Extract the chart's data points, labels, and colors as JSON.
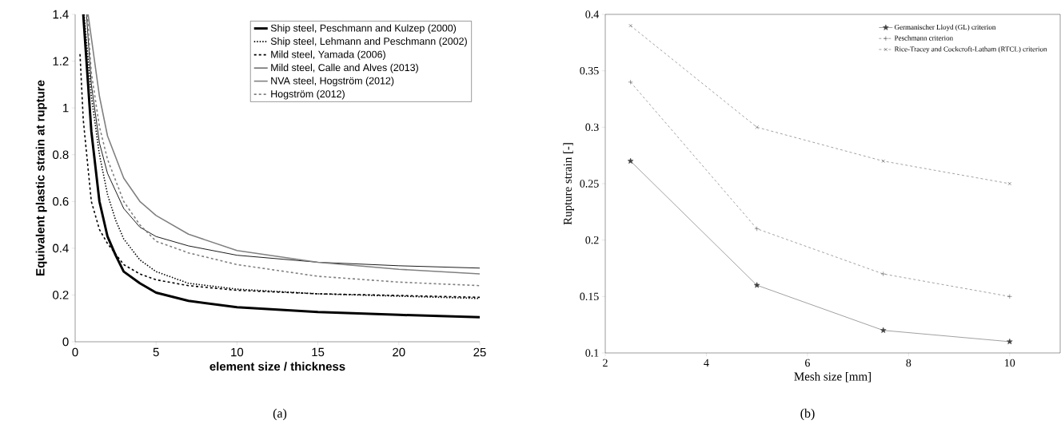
{
  "chart_data": [
    {
      "type": "line",
      "xlabel": "element size / thickness",
      "ylabel": "Equivalent plastic strain at rupture",
      "xlim": [
        0,
        25
      ],
      "ylim": [
        0,
        1.4
      ],
      "xticks": [
        0,
        5,
        10,
        15,
        20,
        25
      ],
      "yticks": [
        0,
        0.2,
        0.4,
        0.6,
        0.8,
        1,
        1.2,
        1.4
      ],
      "legend": "top right",
      "marker": "none",
      "annotations": [
        "(a)"
      ],
      "series": [
        {
          "name": "Ship steel, Peschmann and Kulzep (2000)",
          "color": "#000000",
          "line_style": "solid",
          "x": [
            0.5,
            1,
            1.5,
            2,
            2.5,
            3,
            4,
            5,
            7,
            10,
            15,
            20,
            25
          ],
          "values": [
            1.4,
            0.9,
            0.6,
            0.45,
            0.37,
            0.3,
            0.25,
            0.21,
            0.175,
            0.148,
            0.127,
            0.115,
            0.105
          ]
        },
        {
          "name": "Ship steel, Lehmann and Peschmann (2002)",
          "color": "#000000",
          "line_style": "dotted",
          "x": [
            0.55,
            1,
            1.5,
            2,
            2.5,
            3,
            4,
            5,
            7,
            10,
            15,
            20,
            25
          ],
          "values": [
            1.4,
            1.05,
            0.8,
            0.63,
            0.52,
            0.44,
            0.35,
            0.3,
            0.25,
            0.225,
            0.205,
            0.195,
            0.185
          ]
        },
        {
          "name": "Mild steel, Yamada (2006)",
          "color": "#000000",
          "line_style": "dashed",
          "x": [
            0.3,
            0.5,
            1,
            1.5,
            2,
            3,
            4,
            5,
            7,
            10,
            15,
            20,
            25
          ],
          "values": [
            1.23,
            0.95,
            0.6,
            0.48,
            0.42,
            0.33,
            0.29,
            0.265,
            0.24,
            0.22,
            0.205,
            0.198,
            0.19
          ]
        },
        {
          "name": "Mild steel, Calle and Alves (2013)",
          "color": "#000000",
          "line_style": "solid",
          "x": [
            0.7,
            1,
            1.5,
            2,
            3,
            4,
            5,
            7,
            10,
            15,
            20,
            25
          ],
          "values": [
            1.4,
            1.1,
            0.85,
            0.72,
            0.57,
            0.49,
            0.45,
            0.41,
            0.37,
            0.34,
            0.325,
            0.315
          ]
        },
        {
          "name": "NVA steel, Hogström (2012)",
          "color": "#808080",
          "line_style": "solid",
          "x": [
            0.8,
            1,
            1.5,
            2,
            3,
            4,
            5,
            7,
            10,
            15,
            20,
            25
          ],
          "values": [
            1.4,
            1.3,
            1.05,
            0.88,
            0.7,
            0.6,
            0.54,
            0.46,
            0.39,
            0.34,
            0.31,
            0.29
          ]
        },
        {
          "name": "Hogström (2012)",
          "color": "#808080",
          "line_style": "dashed",
          "x": [
            0.75,
            1,
            1.5,
            2,
            3,
            4,
            5,
            7,
            10,
            15,
            20,
            25
          ],
          "values": [
            1.4,
            1.15,
            0.92,
            0.78,
            0.6,
            0.5,
            0.43,
            0.38,
            0.33,
            0.28,
            0.255,
            0.24
          ]
        }
      ]
    },
    {
      "type": "line",
      "xlabel": "Mesh size [mm]",
      "ylabel": "Rupture strain [-]",
      "xlim": [
        2,
        11
      ],
      "ylim": [
        0.1,
        0.4
      ],
      "xticks": [
        2,
        4,
        6,
        8,
        10
      ],
      "yticks": [
        0.1,
        0.15,
        0.2,
        0.25,
        0.3,
        0.35,
        0.4
      ],
      "legend": "top right",
      "annotations": [
        "(b)"
      ],
      "series": [
        {
          "name": "Germanischer Lloyd (GL) criterion",
          "color": "#404040",
          "line_style": "solid",
          "marker": "star",
          "x": [
            2.5,
            5,
            7.5,
            10
          ],
          "values": [
            0.27,
            0.16,
            0.12,
            0.11
          ]
        },
        {
          "name": "Peschmann criterion",
          "color": "#404040",
          "line_style": "dashed",
          "marker": "cross",
          "x": [
            2.5,
            5,
            7.5,
            10
          ],
          "values": [
            0.34,
            0.21,
            0.17,
            0.15
          ]
        },
        {
          "name": "Rice-Tracey and Cockcroft-Latham (RTCL) criterion",
          "color": "#404040",
          "line_style": "dashed",
          "marker": "cross",
          "x": [
            2.5,
            5,
            7.5,
            10
          ],
          "values": [
            0.39,
            0.3,
            0.27,
            0.25
          ]
        }
      ]
    }
  ]
}
